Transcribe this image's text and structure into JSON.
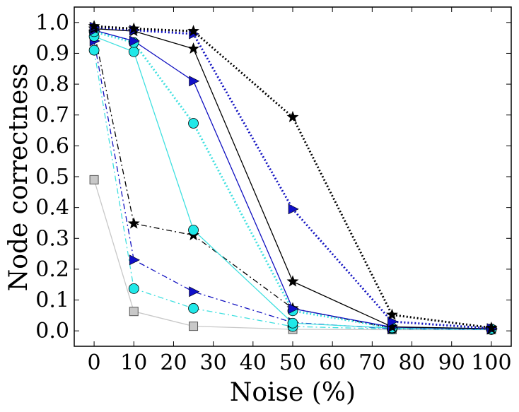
{
  "chart_data": {
    "type": "line",
    "title": "",
    "xlabel": "Noise (%)",
    "ylabel": "Node correctness",
    "xlim": [
      -5,
      105
    ],
    "ylim": [
      -0.05,
      1.05
    ],
    "xticks": [
      0,
      10,
      20,
      30,
      40,
      50,
      60,
      70,
      80,
      90,
      100
    ],
    "xtick_labels": [
      "0",
      "10",
      "20",
      "30",
      "40",
      "50",
      "60",
      "70",
      "80",
      "90",
      "100"
    ],
    "yticks": [
      0.0,
      0.1,
      0.2,
      0.3,
      0.4,
      0.5,
      0.6,
      0.7,
      0.8,
      0.9,
      1.0
    ],
    "ytick_labels": [
      "0.0",
      "0.1",
      "0.2",
      "0.3",
      "0.4",
      "0.5",
      "0.6",
      "0.7",
      "0.8",
      "0.9",
      "1.0"
    ],
    "grid": false,
    "x": [
      0,
      10,
      25,
      50,
      75,
      100
    ],
    "series": [
      {
        "name": "series-gray-square",
        "color": "#c8c8c8",
        "dash": "solid",
        "marker": "square",
        "values": [
          0.49,
          0.063,
          0.015,
          0.005,
          0.004,
          0.004
        ]
      },
      {
        "name": "series-cyan-circle-dashdot",
        "color": "#40e0e0",
        "dash": "dashdot",
        "marker": "circle",
        "values": [
          0.91,
          0.137,
          0.073,
          0.014,
          0.006,
          0.004
        ]
      },
      {
        "name": "series-blue-triangle-dashdot",
        "color": "#1010c0",
        "dash": "dashdot",
        "marker": "triangle",
        "values": [
          0.94,
          0.23,
          0.127,
          0.027,
          0.007,
          0.005
        ]
      },
      {
        "name": "series-black-star-dashdot",
        "color": "#000000",
        "dash": "dashdot",
        "marker": "star",
        "values": [
          0.97,
          0.348,
          0.31,
          0.073,
          0.008,
          0.006
        ]
      },
      {
        "name": "series-cyan-circle-solid",
        "color": "#40e0e0",
        "dash": "solid",
        "marker": "circle",
        "values": [
          0.955,
          0.905,
          0.327,
          0.025,
          0.009,
          0.006
        ]
      },
      {
        "name": "series-cyan-circle-dotted",
        "color": "#40e0e0",
        "dash": "dotted",
        "marker": "circle",
        "values": [
          0.97,
          0.935,
          0.673,
          0.065,
          0.01,
          0.006
        ]
      },
      {
        "name": "series-blue-triangle-solid",
        "color": "#1010c0",
        "dash": "solid",
        "marker": "triangle",
        "values": [
          0.975,
          0.94,
          0.81,
          0.072,
          0.012,
          0.006
        ]
      },
      {
        "name": "series-black-star-solid",
        "color": "#000000",
        "dash": "solid",
        "marker": "star",
        "values": [
          0.98,
          0.972,
          0.915,
          0.16,
          0.013,
          0.007
        ]
      },
      {
        "name": "series-blue-triangle-dotted",
        "color": "#1010c0",
        "dash": "dotted",
        "marker": "triangle",
        "values": [
          0.985,
          0.975,
          0.963,
          0.395,
          0.03,
          0.008
        ]
      },
      {
        "name": "series-black-star-dotted",
        "color": "#000000",
        "dash": "dotted",
        "marker": "star",
        "values": [
          0.988,
          0.98,
          0.972,
          0.693,
          0.052,
          0.01
        ]
      }
    ]
  }
}
